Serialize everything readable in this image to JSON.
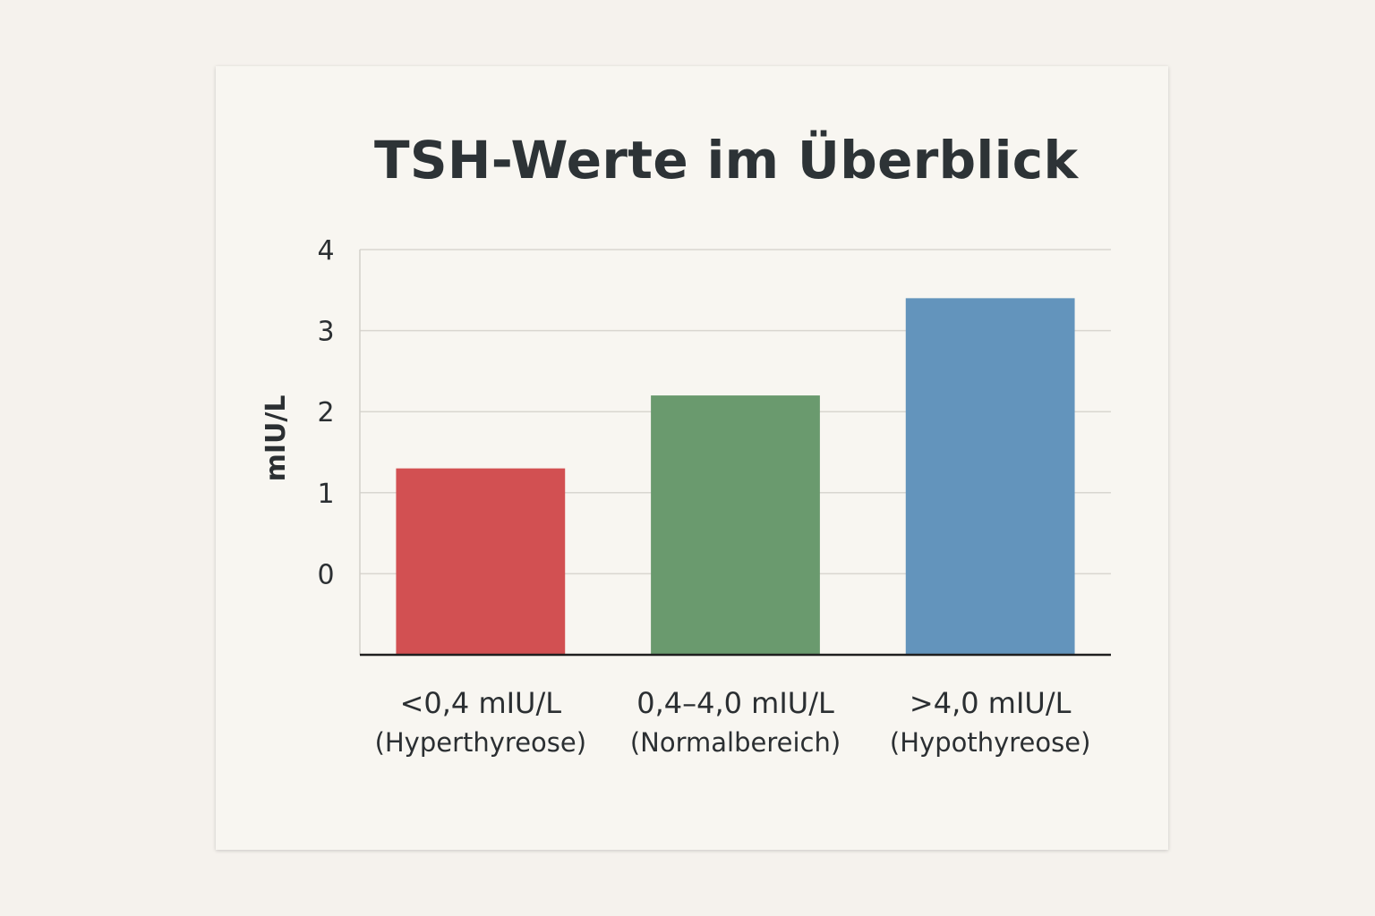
{
  "chart_data": {
    "type": "bar",
    "title": "TSH-Werte im Überblick",
    "ylabel": "mIU/L",
    "xlabel": "",
    "ylim": [
      -1,
      4
    ],
    "yticks": [
      0,
      1,
      2,
      3,
      4
    ],
    "grid": true,
    "legend": "none",
    "categories": [
      {
        "label": "<0,4 mIU/L",
        "sublabel": "(Hyperthyreose)"
      },
      {
        "label": "0,4–4,0 mIU/L",
        "sublabel": "(Normalbereich)"
      },
      {
        "label": ">4,0 mIU/L",
        "sublabel": "(Hypothyreose)"
      }
    ],
    "values": [
      1.3,
      2.2,
      3.4
    ],
    "colors": [
      "#d25052",
      "#6a9a6e",
      "#6394bc"
    ]
  }
}
